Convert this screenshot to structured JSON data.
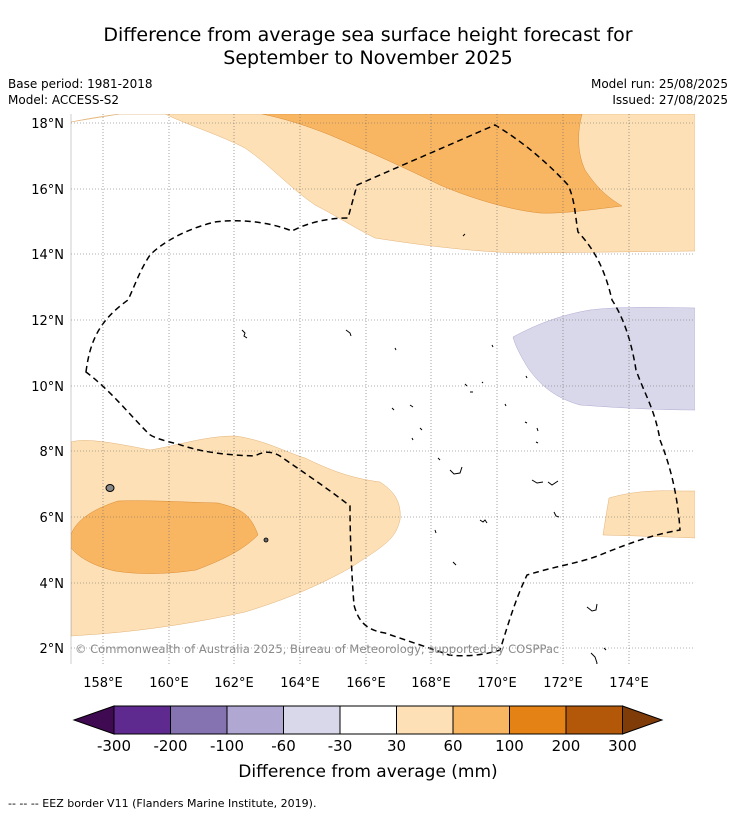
{
  "header": {
    "title_line1": "Difference from average sea surface height forecast for",
    "title_line2": "September to November 2025",
    "base_period": "Base period: 1981-2018",
    "model": "Model: ACCESS-S2",
    "model_run": "Model run: 25/08/2025",
    "issued": "Issued: 27/08/2025"
  },
  "map": {
    "lon_ticks": [
      "158°E",
      "160°E",
      "162°E",
      "164°E",
      "166°E",
      "168°E",
      "170°E",
      "172°E",
      "174°E"
    ],
    "lat_ticks": [
      "18°N",
      "16°N",
      "14°N",
      "12°N",
      "10°N",
      "8°N",
      "6°N",
      "4°N",
      "2°N"
    ],
    "copyright": "© Commonwealth of Australia 2025, Bureau of Meteorology, supported by COSPPac",
    "colors": {
      "band_30_60": "#fde0b6",
      "band_60_100": "#f9b662",
      "band_neg60_neg30": "#d8d8ea"
    }
  },
  "colorbar": {
    "ticks": [
      "-300",
      "-200",
      "-100",
      "-60",
      "-30",
      "30",
      "60",
      "100",
      "200",
      "300"
    ],
    "colors": [
      "#3f0a52",
      "#5e2a8f",
      "#8572b0",
      "#b0a8d2",
      "#d8d8ea",
      "#ffffff",
      "#fde0b6",
      "#f9b662",
      "#e58215",
      "#b35808",
      "#7f3b08"
    ],
    "title": "Difference from average (mm)"
  },
  "footnote": "--  --  -- EEZ border V11 (Flanders Marine Institute, 2019)."
}
